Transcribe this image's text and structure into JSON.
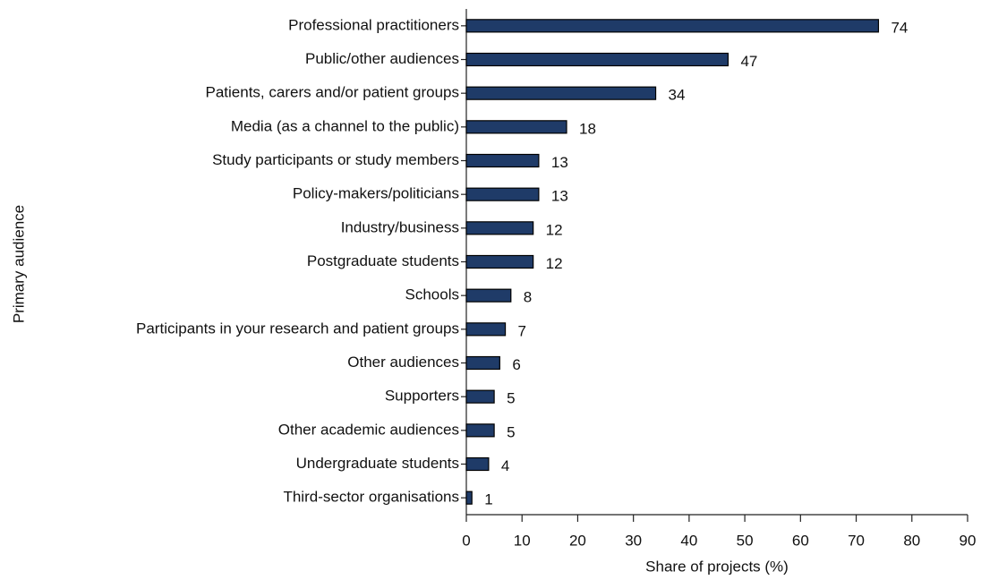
{
  "chart_data": {
    "type": "barh",
    "categories": [
      "Professional practitioners",
      "Public/other audiences",
      "Patients, carers and/or patient groups",
      "Media (as a channel to the public)",
      "Study participants or study members",
      "Policy-makers/politicians",
      "Industry/business",
      "Postgraduate students",
      "Schools",
      "Participants in your research and patient groups",
      "Other audiences",
      "Supporters",
      "Other academic audiences",
      "Undergraduate students",
      "Third-sector organisations"
    ],
    "values": [
      74,
      47,
      34,
      18,
      13,
      13,
      12,
      12,
      8,
      7,
      6,
      5,
      5,
      4,
      1
    ],
    "color": "#1f3b68",
    "xlabel": "Share of projects (%)",
    "ylabel": "Primary audience",
    "xlim": [
      0,
      90
    ],
    "xticks": [
      0,
      10,
      20,
      30,
      40,
      50,
      60,
      70,
      80,
      90
    ],
    "grid": false
  }
}
